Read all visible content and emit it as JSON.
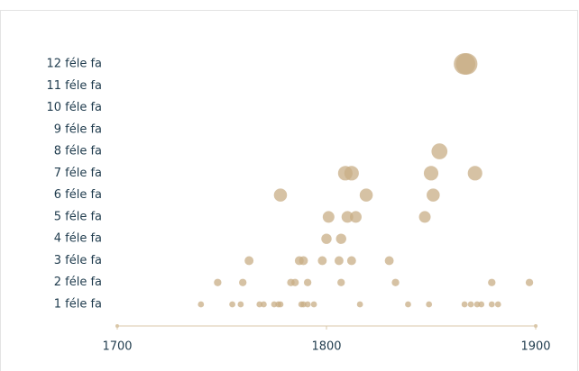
{
  "chart_data": {
    "type": "scatter",
    "series": [
      {
        "color": "#c8ad85",
        "x": [
          1740,
          1755,
          1759,
          1768,
          1770,
          1775,
          1777,
          1778,
          1788,
          1789,
          1791,
          1794,
          1816,
          1839,
          1849,
          1866,
          1869,
          1872,
          1874,
          1879,
          1882,
          1748,
          1760,
          1783,
          1785,
          1791,
          1807,
          1833,
          1879,
          1897,
          1763,
          1787,
          1789,
          1798,
          1806,
          1812,
          1830,
          1800,
          1807,
          1801,
          1810,
          1814,
          1847,
          1778,
          1819,
          1851,
          1809,
          1812,
          1850,
          1871,
          1854,
          1866,
          1867
        ],
        "values": [
          1,
          1,
          1,
          1,
          1,
          1,
          1,
          1,
          1,
          1,
          1,
          1,
          1,
          1,
          1,
          1,
          1,
          1,
          1,
          1,
          1,
          2,
          2,
          2,
          2,
          2,
          2,
          2,
          2,
          2,
          3,
          3,
          3,
          3,
          3,
          3,
          3,
          4,
          4,
          5,
          5,
          5,
          5,
          6,
          6,
          6,
          7,
          7,
          7,
          7,
          8,
          12,
          12
        ]
      }
    ],
    "xlim": [
      1700,
      1900
    ],
    "xticks": [
      1700,
      1800,
      1900
    ],
    "ylim": [
      1,
      12
    ],
    "yticks": [
      {
        "value": 1,
        "label": "1 féle fa"
      },
      {
        "value": 2,
        "label": "2 féle fa"
      },
      {
        "value": 3,
        "label": "3 féle fa"
      },
      {
        "value": 4,
        "label": "4 féle fa"
      },
      {
        "value": 5,
        "label": "5 féle fa"
      },
      {
        "value": 6,
        "label": "6 féle fa"
      },
      {
        "value": 7,
        "label": "7 féle fa"
      },
      {
        "value": 8,
        "label": "8 féle fa"
      },
      {
        "value": 9,
        "label": "9 féle fa"
      },
      {
        "value": 10,
        "label": "10 féle fa"
      },
      {
        "value": 11,
        "label": "11 féle fa"
      },
      {
        "value": 12,
        "label": "12 féle fa"
      }
    ]
  }
}
